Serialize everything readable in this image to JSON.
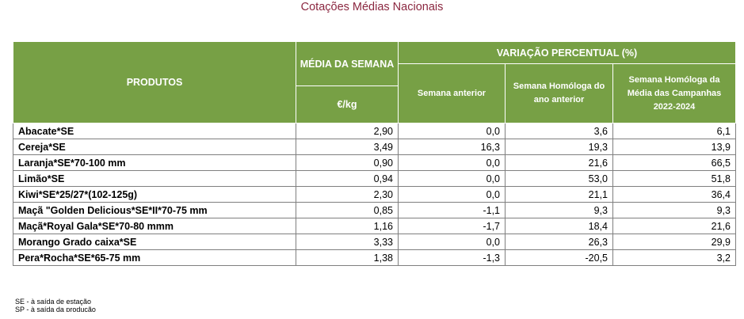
{
  "title": "Cotações Médias Nacionais",
  "headers": {
    "produtos": "PRODUTOS",
    "media_semana": "MÉDIA DA SEMANA",
    "unit": "€/kg",
    "variacao": "VARIAÇÃO PERCENTUAL (%)",
    "semana_anterior": "Semana anterior",
    "semana_homologa": "Semana Homóloga do ano anterior",
    "media_campanhas": "Semana Homóloga da Média das Campanhas 2022-2024"
  },
  "colors": {
    "header_bg": "#77a045",
    "title": "#8b2740"
  },
  "rows": [
    {
      "product": "Abacate*SE",
      "price": "2,90",
      "prev_week": "0,0",
      "yoy": "3,6",
      "campaigns": "6,1"
    },
    {
      "product": "Cereja*SE",
      "price": "3,49",
      "prev_week": "16,3",
      "yoy": "19,3",
      "campaigns": "13,9"
    },
    {
      "product": "Laranja*SE*70-100 mm",
      "price": "0,90",
      "prev_week": "0,0",
      "yoy": "21,6",
      "campaigns": "66,5"
    },
    {
      "product": "Limão*SE",
      "price": "0,94",
      "prev_week": "0,0",
      "yoy": "53,0",
      "campaigns": "51,8"
    },
    {
      "product": "Kiwi*SE*25/27*(102-125g)",
      "price": "2,30",
      "prev_week": "0,0",
      "yoy": "21,1",
      "campaigns": "36,4"
    },
    {
      "product": "Maçã \"Golden Delicious*SE*II*70-75 mm",
      "price": "0,85",
      "prev_week": "-1,1",
      "yoy": "9,3",
      "campaigns": "9,3"
    },
    {
      "product": "Maçã*Royal Gala*SE*70-80 mmm",
      "price": "1,16",
      "prev_week": "-1,7",
      "yoy": "18,4",
      "campaigns": "21,6"
    },
    {
      "product": "Morango Grado caixa*SE",
      "price": "3,33",
      "prev_week": "0,0",
      "yoy": "26,3",
      "campaigns": "29,9"
    },
    {
      "product": "Pera*Rocha*SE*65-75 mm",
      "price": "1,38",
      "prev_week": "-1,3",
      "yoy": "-20,5",
      "campaigns": "3,2"
    }
  ],
  "notes": {
    "se": "SE - à saída de estação",
    "sp": "SP - à saída da produção"
  }
}
